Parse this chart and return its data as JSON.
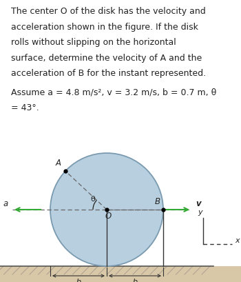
{
  "text_block_lines": [
    "The center O of the disk has the velocity and",
    "acceleration shown in the figure. If the disk",
    "rolls without slipping on the horizontal",
    "surface, determine the velocity of A and the",
    "acceleration of B for the instant represented."
  ],
  "assume_line1": "Assume a = 4.8 m/s², v = 3.2 m/s, b = 0.7 m, θ",
  "assume_line2": "= 43°.",
  "bg_color": "#ffffff",
  "disk_color": "#b8cfe0",
  "disk_edge_color": "#7a9ab0",
  "text_color": "#222222",
  "arrow_color": "#33aa33",
  "dashed_color": "#666666",
  "dim_line_color": "#333333",
  "ground_top_color": "#c8b898",
  "ground_fill_color": "#d8c8a8",
  "theta_deg": 43,
  "font_size_text": 9.0,
  "font_size_label": 8.5,
  "font_size_small": 8.0
}
